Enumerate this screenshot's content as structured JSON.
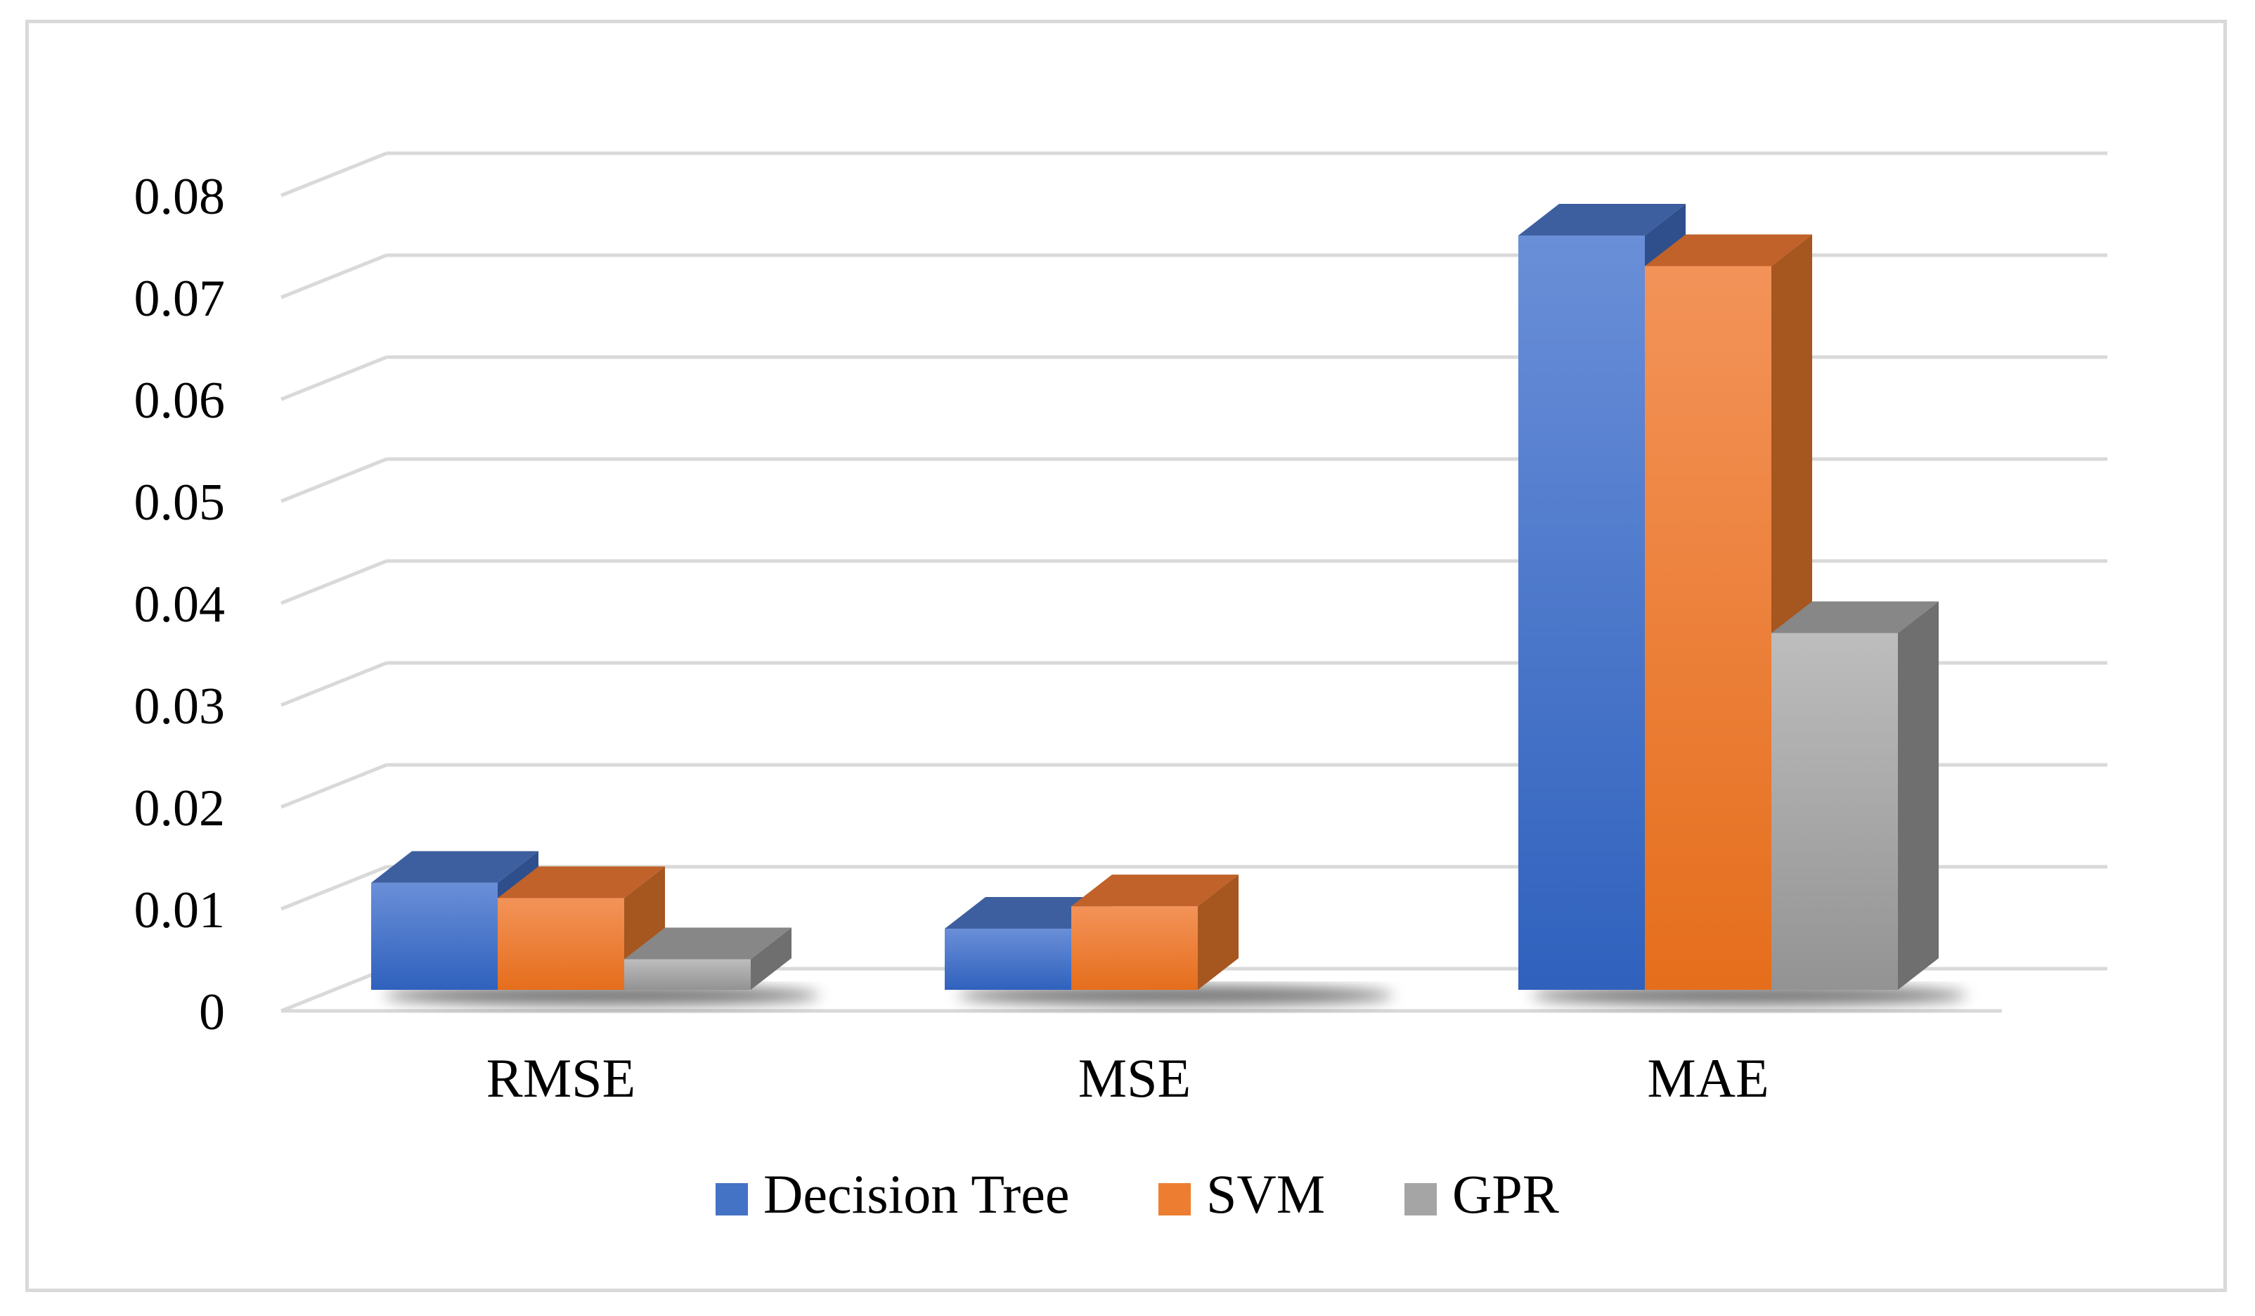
{
  "chart_data": {
    "type": "bar",
    "title": "",
    "xlabel": "",
    "ylabel": "",
    "categories": [
      "RMSE",
      "MSE",
      "MAE"
    ],
    "series": [
      {
        "name": "Decision Tree",
        "values": [
          0.0105,
          0.006,
          0.074
        ],
        "color": "#4472c4"
      },
      {
        "name": "SVM",
        "values": [
          0.009,
          0.0082,
          0.071
        ],
        "color": "#ed7d31"
      },
      {
        "name": "GPR",
        "values": [
          0.003,
          0.0,
          0.035
        ],
        "color": "#a5a5a5"
      }
    ],
    "y_ticks": [
      "0",
      "0.01",
      "0.02",
      "0.03",
      "0.04",
      "0.05",
      "0.06",
      "0.07",
      "0.08"
    ],
    "ylim": [
      0,
      0.08
    ],
    "grid": true,
    "style": "3d-clustered-column",
    "legend_position": "bottom"
  }
}
